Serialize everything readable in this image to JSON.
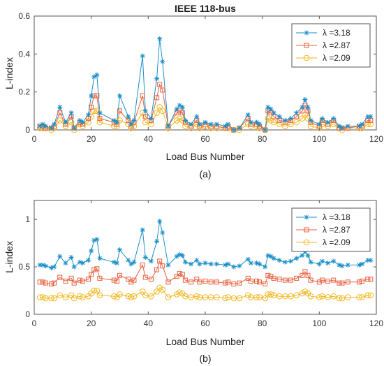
{
  "figure": {
    "colors": {
      "s1": "#1a8fc9",
      "s2": "#e8603c",
      "s3": "#f3b721"
    },
    "markers": {
      "s1": "star-icon",
      "s2": "square-icon",
      "s3": "circle-icon"
    }
  },
  "chart_data": [
    {
      "type": "line",
      "title": "IEEE 118-bus",
      "xlabel": "Load Bus Number",
      "ylabel": "L-index",
      "caption": "(a)",
      "xlim": [
        0,
        120
      ],
      "ylim": [
        0,
        0.6
      ],
      "xticks": [
        0,
        20,
        40,
        60,
        80,
        100,
        120
      ],
      "yticks": [
        0,
        0.2,
        0.4,
        0.6
      ],
      "grid": false,
      "legend_position": "top-right",
      "x": [
        2,
        3,
        4,
        6,
        7,
        9,
        11,
        13,
        14,
        16,
        17,
        19,
        20,
        21,
        22,
        23,
        28,
        29,
        30,
        33,
        34,
        35,
        38,
        39,
        41,
        43,
        44,
        45,
        47,
        50,
        51,
        52,
        53,
        55,
        57,
        58,
        60,
        62,
        64,
        67,
        68,
        70,
        72,
        75,
        76,
        78,
        79,
        81,
        82,
        83,
        84,
        86,
        88,
        90,
        92,
        94,
        95,
        96,
        97,
        100,
        101,
        103,
        105,
        107,
        108,
        110,
        114,
        115,
        117,
        118
      ],
      "series": [
        {
          "name": "λ =3.18",
          "values": [
            0.02,
            0.03,
            0.02,
            0.01,
            0.03,
            0.12,
            0.04,
            0.09,
            0.01,
            0.05,
            0.04,
            0.08,
            0.18,
            0.28,
            0.29,
            0.09,
            0.05,
            0.04,
            0.18,
            0.07,
            0.03,
            0.05,
            0.39,
            0.1,
            0.06,
            0.27,
            0.48,
            0.36,
            0.02,
            0.11,
            0.13,
            0.12,
            0.05,
            0.03,
            0.07,
            0.03,
            0.04,
            0.03,
            0.03,
            0.02,
            0.03,
            0.0,
            0.01,
            0.08,
            0.04,
            0.04,
            0.03,
            0.0,
            0.12,
            0.11,
            0.09,
            0.07,
            0.05,
            0.06,
            0.09,
            0.12,
            0.16,
            0.12,
            0.05,
            0.03,
            0.06,
            0.04,
            0.06,
            0.02,
            0.01,
            0.02,
            0.02,
            0.03,
            0.07,
            0.07
          ]
        },
        {
          "name": "λ =2.87",
          "values": [
            0.02,
            0.02,
            0.01,
            0.01,
            0.02,
            0.09,
            0.03,
            0.07,
            0.01,
            0.04,
            0.03,
            0.06,
            0.12,
            0.18,
            0.18,
            0.06,
            0.04,
            0.03,
            0.1,
            0.05,
            0.02,
            0.04,
            0.18,
            0.07,
            0.05,
            0.17,
            0.24,
            0.21,
            0.02,
            0.09,
            0.1,
            0.09,
            0.04,
            0.02,
            0.05,
            0.02,
            0.03,
            0.02,
            0.02,
            0.01,
            0.02,
            0.0,
            0.01,
            0.06,
            0.03,
            0.03,
            0.02,
            0.0,
            0.1,
            0.09,
            0.07,
            0.05,
            0.04,
            0.05,
            0.07,
            0.1,
            0.13,
            0.1,
            0.04,
            0.02,
            0.05,
            0.03,
            0.05,
            0.01,
            0.01,
            0.01,
            0.02,
            0.02,
            0.05,
            0.05
          ]
        },
        {
          "name": "λ =2.09",
          "values": [
            0.01,
            0.01,
            0.01,
            0.0,
            0.01,
            0.05,
            0.02,
            0.04,
            0.0,
            0.03,
            0.02,
            0.04,
            0.07,
            0.1,
            0.1,
            0.04,
            0.02,
            0.02,
            0.05,
            0.03,
            0.01,
            0.02,
            0.09,
            0.04,
            0.03,
            0.09,
            0.12,
            0.1,
            0.01,
            0.05,
            0.06,
            0.05,
            0.02,
            0.01,
            0.03,
            0.01,
            0.02,
            0.01,
            0.01,
            0.01,
            0.01,
            0.0,
            0.0,
            0.03,
            0.02,
            0.02,
            0.01,
            0.0,
            0.06,
            0.05,
            0.04,
            0.03,
            0.02,
            0.03,
            0.04,
            0.06,
            0.08,
            0.06,
            0.02,
            0.01,
            0.03,
            0.02,
            0.03,
            0.01,
            0.0,
            0.01,
            0.01,
            0.01,
            0.03,
            0.03
          ]
        }
      ]
    },
    {
      "type": "line",
      "title": "",
      "xlabel": "Load Bus Number",
      "ylabel": "L-index",
      "caption": "(b)",
      "xlim": [
        0,
        120
      ],
      "ylim": [
        0,
        1.2
      ],
      "xticks": [
        0,
        20,
        40,
        60,
        80,
        100,
        120
      ],
      "yticks": [
        0,
        0.5,
        1
      ],
      "grid": false,
      "legend_position": "top-right",
      "x": [
        2,
        3,
        4,
        6,
        7,
        9,
        11,
        13,
        14,
        16,
        17,
        19,
        20,
        21,
        22,
        23,
        28,
        29,
        30,
        33,
        34,
        35,
        38,
        39,
        41,
        43,
        44,
        45,
        47,
        50,
        51,
        52,
        53,
        55,
        57,
        58,
        60,
        62,
        64,
        67,
        68,
        70,
        72,
        75,
        76,
        78,
        79,
        81,
        82,
        83,
        84,
        86,
        88,
        90,
        92,
        94,
        95,
        96,
        97,
        100,
        101,
        103,
        105,
        107,
        108,
        110,
        114,
        115,
        117,
        118
      ],
      "series": [
        {
          "name": "λ =3.18",
          "values": [
            0.52,
            0.52,
            0.51,
            0.49,
            0.5,
            0.61,
            0.54,
            0.6,
            0.5,
            0.55,
            0.54,
            0.57,
            0.67,
            0.78,
            0.79,
            0.59,
            0.55,
            0.54,
            0.68,
            0.57,
            0.53,
            0.55,
            0.89,
            0.6,
            0.56,
            0.77,
            0.98,
            0.86,
            0.52,
            0.61,
            0.63,
            0.62,
            0.55,
            0.53,
            0.57,
            0.53,
            0.54,
            0.53,
            0.53,
            0.52,
            0.53,
            0.5,
            0.51,
            0.58,
            0.54,
            0.54,
            0.53,
            0.5,
            0.62,
            0.61,
            0.59,
            0.57,
            0.55,
            0.56,
            0.59,
            0.62,
            0.66,
            0.62,
            0.55,
            0.53,
            0.56,
            0.54,
            0.56,
            0.52,
            0.51,
            0.52,
            0.52,
            0.53,
            0.57,
            0.57
          ]
        },
        {
          "name": "λ =2.87",
          "values": [
            0.34,
            0.34,
            0.33,
            0.32,
            0.33,
            0.39,
            0.35,
            0.38,
            0.33,
            0.36,
            0.35,
            0.37,
            0.42,
            0.47,
            0.48,
            0.38,
            0.36,
            0.35,
            0.41,
            0.37,
            0.34,
            0.36,
            0.52,
            0.39,
            0.37,
            0.47,
            0.56,
            0.51,
            0.34,
            0.4,
            0.43,
            0.42,
            0.36,
            0.34,
            0.37,
            0.34,
            0.35,
            0.34,
            0.34,
            0.33,
            0.34,
            0.32,
            0.33,
            0.38,
            0.35,
            0.35,
            0.34,
            0.32,
            0.41,
            0.4,
            0.38,
            0.37,
            0.36,
            0.36,
            0.38,
            0.41,
            0.45,
            0.41,
            0.36,
            0.34,
            0.36,
            0.35,
            0.36,
            0.33,
            0.33,
            0.34,
            0.34,
            0.35,
            0.37,
            0.37
          ]
        },
        {
          "name": "λ =2.09",
          "values": [
            0.18,
            0.18,
            0.17,
            0.17,
            0.17,
            0.2,
            0.18,
            0.2,
            0.17,
            0.19,
            0.18,
            0.19,
            0.22,
            0.25,
            0.25,
            0.2,
            0.19,
            0.18,
            0.21,
            0.19,
            0.18,
            0.19,
            0.24,
            0.2,
            0.19,
            0.24,
            0.28,
            0.26,
            0.18,
            0.21,
            0.23,
            0.22,
            0.19,
            0.18,
            0.19,
            0.18,
            0.18,
            0.18,
            0.18,
            0.17,
            0.18,
            0.17,
            0.17,
            0.2,
            0.18,
            0.18,
            0.18,
            0.17,
            0.21,
            0.21,
            0.2,
            0.19,
            0.19,
            0.19,
            0.2,
            0.22,
            0.24,
            0.22,
            0.19,
            0.18,
            0.19,
            0.18,
            0.19,
            0.17,
            0.17,
            0.18,
            0.18,
            0.18,
            0.2,
            0.2
          ]
        }
      ]
    }
  ]
}
